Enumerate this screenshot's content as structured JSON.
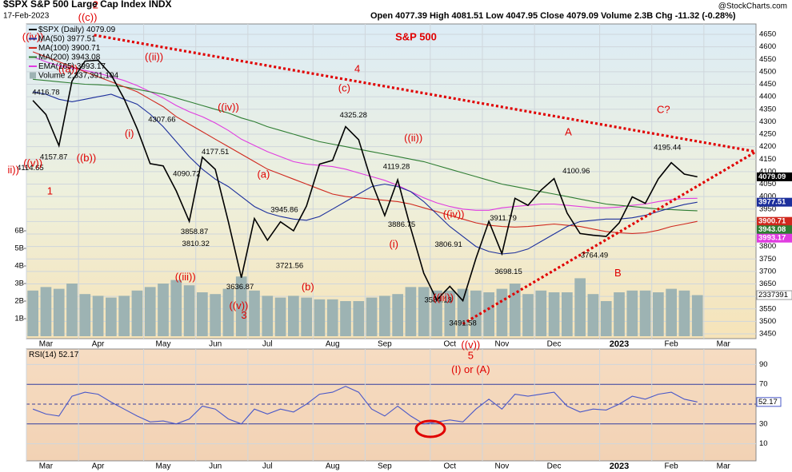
{
  "chart_data": {
    "type": "line",
    "title": "S&P 500",
    "symbol": "$SPX S&P 500 Large Cap Index INDX",
    "date": "17-Feb-2023",
    "quote": "Open 4077.39 High 4081.51 Low 4047.95 Close 4079.09 Volume 2.3B Chg -11.32 (-0.28%)",
    "source": "@StockCharts.com",
    "categories": [
      null,
      "Mar",
      null,
      null,
      null,
      "Apr",
      null,
      null,
      null,
      null,
      "May",
      null,
      null,
      null,
      "Jun",
      null,
      null,
      null,
      "Jul",
      null,
      null,
      null,
      null,
      "Aug",
      null,
      null,
      null,
      "Sep",
      null,
      null,
      null,
      null,
      "Oct",
      null,
      null,
      null,
      "Nov",
      null,
      null,
      null,
      "Dec",
      null,
      null,
      null,
      null,
      "2023",
      null,
      null,
      null,
      "Feb",
      null,
      null,
      null,
      "Mar",
      null,
      null
    ],
    "ylim": [
      3420,
      4700
    ],
    "yticks": [
      3450,
      3500,
      3550,
      3600,
      3650,
      3700,
      3750,
      3800,
      3850,
      3900,
      3950,
      4000,
      4050,
      4100,
      4150,
      4200,
      4250,
      4300,
      4350,
      4400,
      4450,
      4500,
      4550,
      4600,
      4650
    ],
    "grid": true,
    "series": [
      {
        "name": "$SPX (Daily)",
        "color": "#000000",
        "values": [
          4385,
          4329,
          4204,
          4463,
          4543,
          4546,
          4488,
          4392,
          4272,
          4132,
          4123,
          4023,
          3901,
          4158,
          4109,
          3900,
          3675,
          3912,
          3825,
          3899,
          3863,
          3962,
          4130,
          4145,
          4280,
          4228,
          4058,
          3924,
          4067,
          3873,
          3693,
          3586,
          3640,
          3583,
          3752,
          3901,
          3771,
          3993,
          3965,
          4026,
          4072,
          3934,
          3852,
          3845,
          3840,
          3895,
          3999,
          3973,
          4071,
          4136,
          4090,
          4079.09,
          null,
          null,
          null,
          null
        ]
      },
      {
        "name": "MA(50)",
        "color": "#1c2f9c",
        "values": [
          4420,
          4410,
          4390,
          4380,
          4390,
          4400,
          4410,
          4390,
          4370,
          4330,
          4280,
          4220,
          4160,
          4110,
          4070,
          4040,
          4000,
          3960,
          3935,
          3920,
          3910,
          3905,
          3920,
          3950,
          3980,
          4010,
          4040,
          4050,
          4040,
          4020,
          3980,
          3930,
          3880,
          3840,
          3800,
          3780,
          3770,
          3775,
          3790,
          3820,
          3850,
          3880,
          3900,
          3905,
          3910,
          3910,
          3915,
          3925,
          3940,
          3955,
          3968,
          3977.51,
          null,
          null,
          null,
          null
        ]
      },
      {
        "name": "MA(100)",
        "color": "#d0281e",
        "values": [
          4580,
          4560,
          4540,
          4520,
          4500,
          4480,
          4460,
          4440,
          4420,
          4390,
          4360,
          4320,
          4290,
          4260,
          4230,
          4200,
          4170,
          4140,
          4110,
          4090,
          4070,
          4050,
          4030,
          4010,
          4000,
          3995,
          3990,
          3985,
          3980,
          3970,
          3955,
          3940,
          3925,
          3910,
          3895,
          3885,
          3880,
          3878,
          3880,
          3885,
          3890,
          3885,
          3880,
          3870,
          3860,
          3855,
          3852,
          3855,
          3865,
          3880,
          3890,
          3900.71,
          null,
          null,
          null,
          null
        ]
      },
      {
        "name": "MA(200)",
        "color": "#2e7d32",
        "values": [
          4470,
          4465,
          4460,
          4455,
          4450,
          4448,
          4445,
          4440,
          4430,
          4420,
          4410,
          4395,
          4380,
          4365,
          4350,
          4335,
          4315,
          4300,
          4280,
          4265,
          4250,
          4235,
          4220,
          4210,
          4200,
          4190,
          4180,
          4170,
          4160,
          4150,
          4140,
          4125,
          4110,
          4095,
          4080,
          4065,
          4050,
          4040,
          4030,
          4020,
          4010,
          4000,
          3990,
          3980,
          3970,
          3965,
          3960,
          3955,
          3950,
          3948,
          3945,
          3943.08,
          null,
          null,
          null,
          null
        ]
      },
      {
        "name": "EMA(165)",
        "color": "#e03ce0",
        "values": [
          4560,
          4540,
          4525,
          4515,
          4505,
          4495,
          4480,
          4465,
          4445,
          4420,
          4395,
          4365,
          4340,
          4320,
          4295,
          4265,
          4230,
          4205,
          4180,
          4160,
          4140,
          4130,
          4125,
          4120,
          4110,
          4095,
          4080,
          4065,
          4045,
          4020,
          3995,
          3975,
          3960,
          3950,
          3945,
          3945,
          3955,
          3960,
          3965,
          3970,
          3970,
          3965,
          3960,
          3955,
          3955,
          3958,
          3965,
          3970,
          3980,
          3988,
          3992,
          3993.17,
          null,
          null,
          null,
          null
        ]
      }
    ],
    "volume": {
      "name": "Volume",
      "total_label": "2,337,391,104",
      "last_label": "2337391",
      "color": "#9db3b3",
      "values": [
        2.6,
        2.8,
        2.7,
        3.0,
        2.4,
        2.3,
        2.2,
        2.3,
        2.6,
        2.8,
        3.0,
        3.2,
        2.9,
        2.5,
        2.4,
        2.7,
        3.4,
        2.6,
        2.3,
        2.2,
        2.3,
        2.2,
        2.1,
        2.1,
        2.0,
        2.0,
        2.2,
        2.3,
        2.4,
        2.8,
        2.8,
        2.6,
        2.6,
        2.7,
        2.6,
        2.5,
        2.7,
        3.0,
        2.4,
        2.6,
        2.5,
        2.5,
        3.3,
        2.4,
        2.0,
        2.5,
        2.6,
        2.6,
        2.5,
        2.7,
        2.6,
        2.34,
        null,
        null,
        null,
        null
      ],
      "ylim": [
        0,
        18
      ],
      "yticks": [
        {
          "value": 1,
          "label": "1B"
        },
        {
          "value": 2,
          "label": "2B"
        },
        {
          "value": 3,
          "label": "3B"
        },
        {
          "value": 4,
          "label": "4B"
        },
        {
          "value": 5,
          "label": "5B"
        },
        {
          "value": 6,
          "label": "6B"
        }
      ]
    },
    "rsi": {
      "name": "RSI(14)",
      "color": "#4a58c8",
      "values": [
        45,
        40,
        38,
        58,
        62,
        60,
        52,
        45,
        38,
        32,
        33,
        30,
        35,
        48,
        45,
        35,
        30,
        45,
        40,
        45,
        42,
        50,
        60,
        62,
        68,
        62,
        45,
        38,
        48,
        38,
        30,
        32,
        34,
        32,
        45,
        55,
        45,
        60,
        58,
        60,
        62,
        48,
        42,
        45,
        44,
        50,
        58,
        55,
        60,
        62,
        55,
        52.17,
        null,
        null,
        null,
        null
      ],
      "ylim": [
        0,
        100
      ],
      "yticks": [
        10,
        30,
        70,
        90
      ],
      "levels": [
        30,
        70
      ],
      "midline": 50
    },
    "price_labels": [
      {
        "value": 4416.78,
        "x": 1.0
      },
      {
        "value": 4157.87,
        "x": 1.6
      },
      {
        "value": 4114.65,
        "x": -0.2
      },
      {
        "value": 4307.66,
        "x": 9.9
      },
      {
        "value": 4090.72,
        "x": 11.8
      },
      {
        "value": 3858.87,
        "x": 12.4
      },
      {
        "value": 3810.32,
        "x": 12.5
      },
      {
        "value": 4177.51,
        "x": 14.0
      },
      {
        "value": 3945.86,
        "x": 19.3
      },
      {
        "value": 3636.87,
        "x": 15.9
      },
      {
        "value": 3721.56,
        "x": 19.7
      },
      {
        "value": 4325.28,
        "x": 24.6
      },
      {
        "value": 4119.28,
        "x": 27.9
      },
      {
        "value": 3886.75,
        "x": 28.3
      },
      {
        "value": 3806.91,
        "x": 31.9
      },
      {
        "value": 3584.13,
        "x": 31.1
      },
      {
        "value": 3491.58,
        "x": 33.0
      },
      {
        "value": 3911.79,
        "x": 36.1
      },
      {
        "value": 3698.15,
        "x": 36.5
      },
      {
        "value": 4100.96,
        "x": 41.7
      },
      {
        "value": 3764.49,
        "x": 43.1
      },
      {
        "value": 4195.44,
        "x": 48.7
      }
    ],
    "annotations": [
      {
        "text": "((iv))",
        "x": 0,
        "y": 4637
      },
      {
        "text": "((c))",
        "x": 4.2,
        "y": 4715
      },
      {
        "text": "2",
        "x": 4.8,
        "y": 4765
      },
      {
        "text": "((a))",
        "x": 2.7,
        "y": 4509
      },
      {
        "text": "((ii))",
        "x": 9.3,
        "y": 4557
      },
      {
        "text": "(i)",
        "x": 7.4,
        "y": 4250
      },
      {
        "text": "((b))",
        "x": 4.1,
        "y": 4153
      },
      {
        "text": "((v))",
        "x": 0,
        "y": 4131
      },
      {
        "text": "1",
        "x": 1.3,
        "y": 4019
      },
      {
        "text": "ii))",
        "x": -1.5,
        "y": 4105
      },
      {
        "text": "((iv))",
        "x": 15.0,
        "y": 4355
      },
      {
        "text": "(a)",
        "x": 17.7,
        "y": 4086
      },
      {
        "text": "((iii))",
        "x": 11.7,
        "y": 3676
      },
      {
        "text": "(b)",
        "x": 21.1,
        "y": 3635
      },
      {
        "text": "((v))",
        "x": 15.8,
        "y": 3561
      },
      {
        "text": "3",
        "x": 16.2,
        "y": 3522
      },
      {
        "text": "(c)",
        "x": 23.9,
        "y": 4432
      },
      {
        "text": "4",
        "x": 24.9,
        "y": 4509
      },
      {
        "text": "((ii))",
        "x": 29.2,
        "y": 4233
      },
      {
        "text": "(i)",
        "x": 27.7,
        "y": 3807
      },
      {
        "text": "((iv))",
        "x": 32.3,
        "y": 3926
      },
      {
        "text": "((iii))",
        "x": 31.5,
        "y": 3593
      },
      {
        "text": "A",
        "x": 41.1,
        "y": 4256
      },
      {
        "text": "B",
        "x": 44.9,
        "y": 3692
      },
      {
        "text": "C?",
        "x": 48.4,
        "y": 4346
      },
      {
        "text": "((v))",
        "x": 33.6,
        "y": 3403
      },
      {
        "text": "5",
        "x": 33.6,
        "y": 3361
      },
      {
        "text": "(I) or (A)",
        "x": 33.6,
        "y": 3304
      }
    ],
    "trendlines": [
      {
        "from": [
          4.7,
          4647
        ],
        "to": [
          55.5,
          4180
        ]
      },
      {
        "from": [
          33.0,
          3490
        ],
        "to": [
          55.5,
          4180
        ]
      }
    ]
  }
}
